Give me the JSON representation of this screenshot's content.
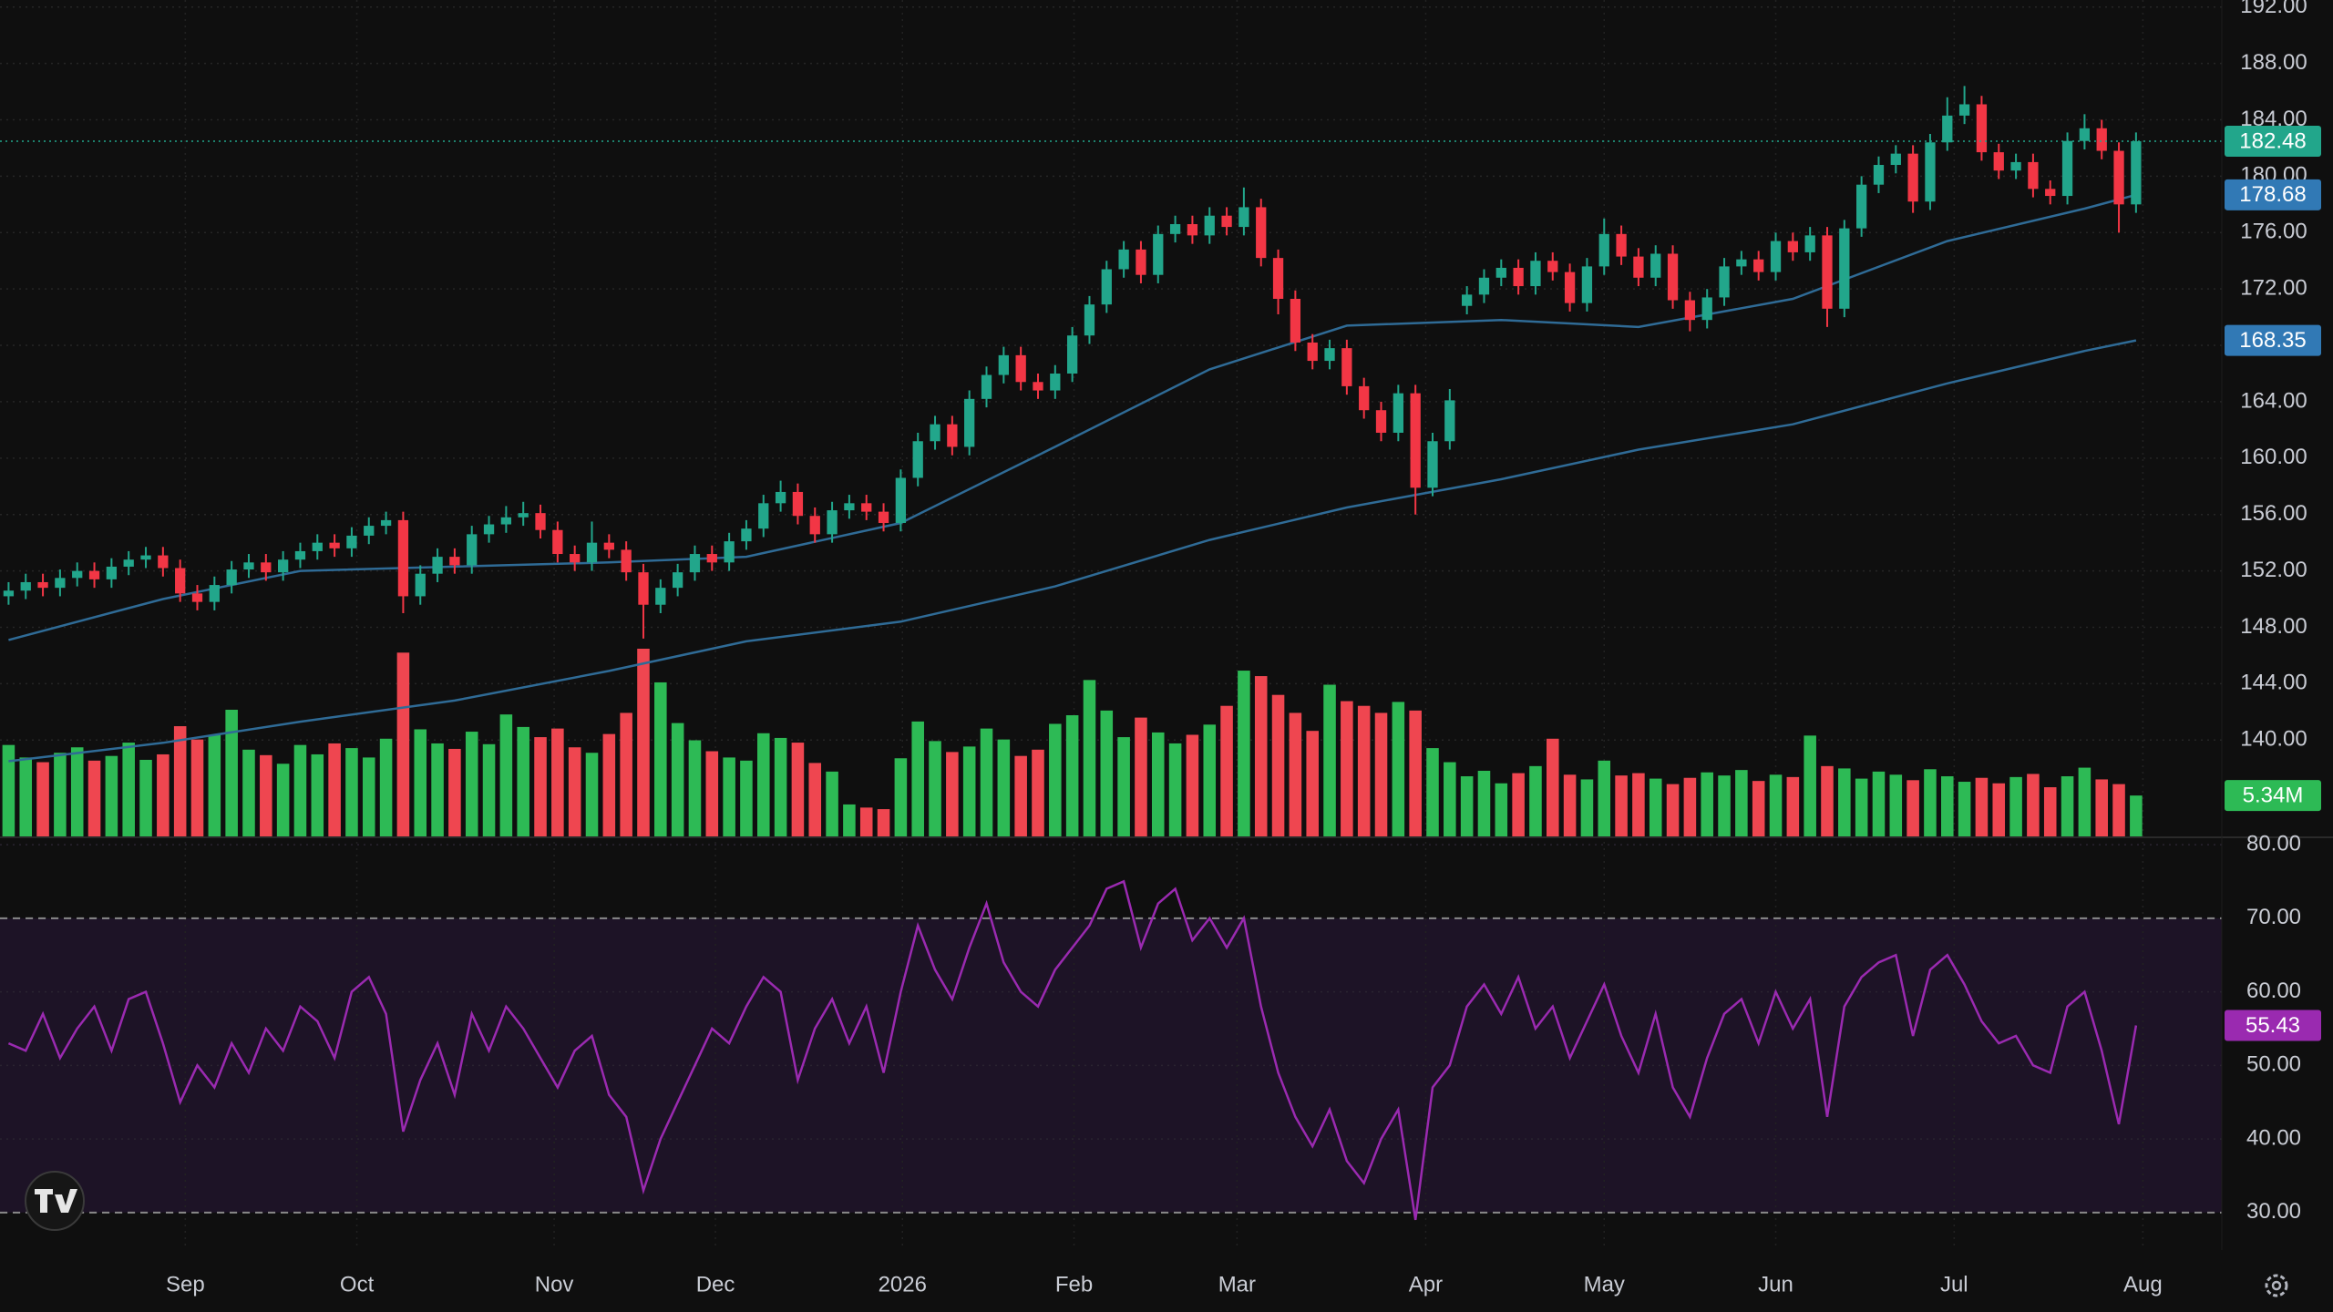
{
  "chart_data": {
    "type": "candlestick",
    "xlim": [
      -0.5,
      129
    ],
    "xticks": [
      {
        "value": 10.3,
        "label": "Sep"
      },
      {
        "value": 20.3,
        "label": "Oct"
      },
      {
        "value": 31.8,
        "label": "Nov"
      },
      {
        "value": 41.2,
        "label": "Dec"
      },
      {
        "value": 52.1,
        "label": "2026"
      },
      {
        "value": 62.1,
        "label": "Feb"
      },
      {
        "value": 71.6,
        "label": "Mar"
      },
      {
        "value": 82.6,
        "label": "Apr"
      },
      {
        "value": 93.0,
        "label": "May"
      },
      {
        "value": 103.0,
        "label": "Jun"
      },
      {
        "value": 113.4,
        "label": "Jul"
      },
      {
        "value": 124.4,
        "label": "Aug"
      }
    ],
    "ylim": [
      133.1,
      192.5
    ],
    "yticks": [
      {
        "value": 192,
        "label": "192.00"
      },
      {
        "value": 188,
        "label": "188.00"
      },
      {
        "value": 184,
        "label": "184.00"
      },
      {
        "value": 180,
        "label": "180.00"
      },
      {
        "value": 176,
        "label": "176.00"
      },
      {
        "value": 172,
        "label": "172.00"
      },
      {
        "value": 168,
        "label": "168.00"
      },
      {
        "value": 164,
        "label": "164.00"
      },
      {
        "value": 160,
        "label": "160.00"
      },
      {
        "value": 156,
        "label": "156.00"
      },
      {
        "value": 152,
        "label": "152.00"
      },
      {
        "value": 148,
        "label": "148.00"
      },
      {
        "value": 144,
        "label": "144.00"
      },
      {
        "value": 140,
        "label": "140.00"
      }
    ],
    "grid": true,
    "up_color": "#22a68b",
    "down_color": "#f23645",
    "open": [
      150.2,
      150.6,
      151.2,
      150.8,
      151.5,
      152.0,
      151.4,
      152.3,
      152.8,
      153.1,
      152.2,
      150.4,
      149.8,
      151.0,
      152.1,
      152.6,
      151.9,
      152.8,
      153.4,
      154.0,
      153.6,
      154.5,
      155.2,
      155.6,
      150.2,
      151.8,
      153.0,
      152.4,
      154.6,
      155.3,
      155.8,
      156.1,
      154.9,
      153.2,
      152.6,
      154.0,
      153.5,
      151.9,
      149.6,
      150.8,
      151.9,
      153.2,
      152.6,
      154.1,
      155.0,
      156.8,
      157.6,
      155.9,
      154.6,
      156.3,
      156.8,
      156.2,
      155.4,
      158.6,
      161.2,
      162.4,
      160.8,
      164.2,
      165.9,
      167.3,
      165.4,
      164.8,
      166.0,
      168.7,
      170.9,
      173.4,
      174.8,
      173.0,
      175.9,
      176.6,
      175.8,
      177.2,
      176.4,
      177.8,
      174.2,
      171.3,
      168.2,
      166.9,
      167.8,
      165.1,
      163.4,
      161.8,
      164.6,
      157.9,
      161.2,
      170.8,
      171.6,
      172.8,
      173.5,
      172.2,
      174.0,
      173.2,
      171.0,
      173.6,
      175.9,
      174.3,
      172.8,
      174.5,
      171.2,
      169.8,
      171.4,
      173.6,
      174.1,
      173.2,
      175.4,
      174.6,
      175.8,
      170.6,
      176.3,
      179.4,
      180.8,
      181.6,
      178.2,
      182.4,
      184.3,
      185.1,
      181.7,
      180.4,
      181.0,
      179.1,
      178.6,
      182.5,
      183.4,
      181.8,
      178.0
    ],
    "high": [
      151.2,
      151.8,
      151.8,
      152.1,
      152.6,
      152.6,
      152.9,
      153.4,
      153.7,
      153.7,
      152.8,
      151.0,
      151.6,
      152.7,
      153.2,
      153.2,
      153.4,
      154.0,
      154.6,
      154.6,
      155.1,
      155.8,
      156.2,
      156.2,
      152.4,
      153.6,
      153.6,
      155.2,
      155.9,
      156.6,
      156.9,
      156.7,
      155.5,
      153.8,
      155.5,
      154.6,
      154.1,
      152.5,
      151.4,
      152.5,
      153.8,
      153.8,
      154.7,
      155.6,
      157.4,
      158.4,
      158.2,
      156.5,
      156.9,
      157.4,
      157.4,
      156.8,
      159.2,
      161.8,
      163.0,
      163.0,
      164.8,
      166.5,
      167.9,
      167.9,
      166.0,
      166.6,
      169.3,
      171.5,
      174.0,
      175.4,
      175.4,
      176.5,
      177.2,
      177.2,
      177.8,
      177.8,
      179.2,
      178.4,
      174.8,
      171.9,
      168.8,
      168.4,
      168.4,
      165.7,
      164.0,
      165.2,
      165.2,
      161.8,
      164.9,
      172.2,
      173.4,
      174.1,
      174.1,
      174.6,
      174.6,
      173.8,
      174.2,
      177.0,
      176.5,
      174.9,
      175.1,
      175.1,
      171.8,
      172.0,
      174.2,
      174.7,
      174.7,
      176.0,
      176.0,
      176.4,
      176.4,
      176.9,
      180.0,
      181.4,
      182.2,
      182.2,
      183.0,
      185.6,
      186.4,
      185.7,
      182.3,
      181.6,
      181.6,
      179.7,
      183.1,
      184.4,
      184.0,
      182.4,
      183.1
    ],
    "low": [
      149.6,
      150.0,
      150.2,
      150.2,
      150.9,
      150.8,
      150.8,
      151.7,
      152.2,
      151.6,
      149.8,
      149.2,
      149.2,
      150.4,
      151.5,
      151.3,
      151.3,
      152.2,
      152.8,
      153.0,
      153.0,
      153.9,
      154.6,
      149.0,
      149.6,
      151.2,
      151.8,
      151.8,
      154.0,
      154.7,
      155.2,
      154.3,
      152.6,
      152.0,
      152.0,
      152.9,
      151.3,
      147.2,
      149.0,
      150.2,
      151.3,
      152.0,
      152.0,
      153.5,
      154.4,
      156.2,
      155.3,
      154.0,
      154.0,
      155.7,
      155.6,
      154.8,
      154.8,
      158.0,
      160.6,
      160.2,
      160.2,
      163.6,
      165.3,
      164.8,
      164.2,
      164.2,
      165.4,
      168.1,
      170.3,
      172.8,
      172.4,
      172.4,
      175.3,
      175.2,
      175.2,
      175.8,
      175.8,
      173.6,
      170.2,
      167.6,
      166.3,
      166.3,
      164.5,
      162.8,
      161.2,
      161.2,
      156.0,
      157.3,
      160.6,
      170.2,
      171.0,
      172.2,
      171.6,
      171.6,
      172.6,
      170.4,
      170.4,
      173.0,
      173.7,
      172.2,
      172.2,
      170.6,
      169.0,
      169.2,
      170.8,
      173.0,
      172.6,
      172.6,
      174.0,
      174.0,
      169.3,
      170.0,
      175.7,
      178.8,
      180.2,
      177.4,
      177.6,
      181.8,
      183.7,
      181.1,
      179.8,
      179.8,
      178.5,
      178.0,
      178.0,
      181.9,
      181.2,
      176.0,
      177.4
    ],
    "close": [
      150.6,
      151.2,
      150.8,
      151.5,
      152.0,
      151.4,
      152.3,
      152.8,
      153.1,
      152.2,
      150.4,
      149.8,
      151.0,
      152.1,
      152.6,
      151.9,
      152.8,
      153.4,
      154.0,
      153.6,
      154.5,
      155.2,
      155.6,
      150.2,
      151.8,
      153.0,
      152.4,
      154.6,
      155.3,
      155.8,
      156.1,
      154.9,
      153.2,
      152.6,
      154.0,
      153.5,
      151.9,
      149.6,
      150.8,
      151.9,
      153.2,
      152.6,
      154.1,
      155.0,
      156.8,
      157.6,
      155.9,
      154.6,
      156.3,
      156.8,
      156.2,
      155.4,
      158.6,
      161.2,
      162.4,
      160.8,
      164.2,
      165.9,
      167.3,
      165.4,
      164.8,
      166.0,
      168.7,
      170.9,
      173.4,
      174.8,
      173.0,
      175.9,
      176.6,
      175.8,
      177.2,
      176.4,
      177.8,
      174.2,
      171.3,
      168.2,
      166.9,
      167.8,
      165.1,
      163.4,
      161.8,
      164.6,
      157.9,
      161.2,
      164.1,
      171.6,
      172.8,
      173.5,
      172.2,
      174.0,
      173.2,
      171.0,
      173.6,
      175.9,
      174.3,
      172.8,
      174.5,
      171.2,
      169.8,
      171.4,
      173.6,
      174.1,
      173.2,
      175.4,
      174.6,
      175.8,
      170.6,
      176.3,
      179.4,
      180.8,
      181.6,
      178.2,
      182.4,
      184.3,
      185.1,
      181.7,
      180.4,
      181.0,
      179.1,
      178.6,
      182.5,
      183.4,
      181.8,
      178.0,
      182.48
    ],
    "moving_averages": [
      {
        "color": "#2f6b96",
        "badge_color": "#3179b5",
        "x": [
          0,
          9,
          17,
          26,
          35,
          43,
          52,
          61,
          70,
          78,
          87,
          95,
          104,
          113,
          121,
          124
        ],
        "values": [
          147.1,
          150.0,
          152.0,
          152.3,
          152.6,
          153.0,
          155.4,
          160.8,
          166.3,
          169.4,
          169.8,
          169.3,
          171.3,
          175.4,
          177.7,
          178.68
        ]
      },
      {
        "color": "#2f6b96",
        "badge_color": "#3179b5",
        "x": [
          0,
          9,
          17,
          26,
          35,
          43,
          52,
          61,
          70,
          78,
          87,
          95,
          104,
          113,
          121,
          124
        ],
        "values": [
          138.5,
          139.8,
          141.3,
          142.8,
          144.9,
          147.0,
          148.4,
          150.9,
          154.2,
          156.5,
          158.5,
          160.6,
          162.4,
          165.3,
          167.6,
          168.35
        ]
      }
    ],
    "volume": {
      "vlim": [
        0,
        107
      ],
      "up_color": "#2dba55",
      "down_color": "#ef4650",
      "last_value_label": "5.34M",
      "values": [
        11.8,
        10.2,
        9.6,
        10.8,
        11.5,
        9.8,
        10.4,
        12.1,
        9.9,
        10.6,
        14.2,
        12.5,
        13.1,
        16.3,
        11.2,
        10.5,
        9.4,
        11.8,
        10.6,
        12.0,
        11.4,
        10.2,
        12.6,
        23.6,
        13.8,
        12.0,
        11.3,
        13.5,
        11.9,
        15.7,
        14.1,
        12.8,
        13.9,
        11.5,
        10.8,
        13.2,
        15.9,
        24.1,
        19.8,
        14.6,
        12.4,
        11.0,
        10.2,
        9.8,
        13.3,
        12.7,
        12.1,
        9.5,
        8.4,
        4.2,
        3.8,
        3.6,
        10.1,
        14.8,
        12.3,
        10.9,
        11.6,
        13.9,
        12.5,
        10.4,
        11.2,
        14.5,
        15.6,
        20.1,
        16.2,
        12.8,
        15.3,
        13.4,
        12.0,
        13.1,
        14.4,
        16.8,
        21.3,
        20.6,
        18.2,
        15.9,
        13.6,
        19.5,
        17.4,
        16.8,
        15.9,
        17.3,
        16.2,
        11.4,
        9.6,
        7.8,
        8.5,
        6.9,
        8.2,
        9.1,
        12.6,
        8.0,
        7.4,
        9.8,
        7.9,
        8.2,
        7.5,
        6.8,
        7.6,
        8.3,
        7.9,
        8.6,
        7.2,
        8.0,
        7.7,
        13.0,
        9.1,
        8.8,
        7.5,
        8.4,
        8.0,
        7.3,
        8.7,
        7.8,
        7.1,
        7.6,
        6.9,
        7.7,
        8.1,
        6.4,
        7.8,
        8.9,
        7.4,
        6.8,
        5.34
      ]
    },
    "rsi": {
      "ylim": [
        24.9,
        81
      ],
      "color": "#9a2ab0",
      "band_color": "#1d1326",
      "band": [
        30,
        70
      ],
      "yticks": [
        {
          "value": 80,
          "label": "80.00"
        },
        {
          "value": 70,
          "label": "70.00"
        },
        {
          "value": 60,
          "label": "60.00"
        },
        {
          "value": 50,
          "label": "50.00"
        },
        {
          "value": 40,
          "label": "40.00"
        },
        {
          "value": 30,
          "label": "30.00"
        }
      ],
      "values": [
        53,
        52,
        57,
        51,
        55,
        58,
        52,
        59,
        60,
        53,
        45,
        50,
        47,
        53,
        49,
        55,
        52,
        58,
        56,
        51,
        60,
        62,
        57,
        41,
        48,
        53,
        46,
        57,
        52,
        58,
        55,
        51,
        47,
        52,
        54,
        46,
        43,
        33,
        40,
        45,
        50,
        55,
        53,
        58,
        62,
        60,
        48,
        55,
        59,
        53,
        58,
        49,
        60,
        69,
        63,
        59,
        66,
        72,
        64,
        60,
        58,
        63,
        66,
        69,
        74,
        75,
        66,
        72,
        74,
        67,
        70,
        66,
        70,
        58,
        49,
        43,
        39,
        44,
        37,
        34,
        40,
        44,
        29,
        47,
        50,
        58,
        61,
        57,
        62,
        55,
        58,
        51,
        56,
        61,
        54,
        49,
        57,
        47,
        43,
        51,
        57,
        59,
        53,
        60,
        55,
        59,
        43,
        58,
        62,
        64,
        65,
        54,
        63,
        65,
        61,
        56,
        53,
        54,
        50,
        49,
        58,
        60,
        52,
        42,
        55.43
      ]
    }
  }
}
